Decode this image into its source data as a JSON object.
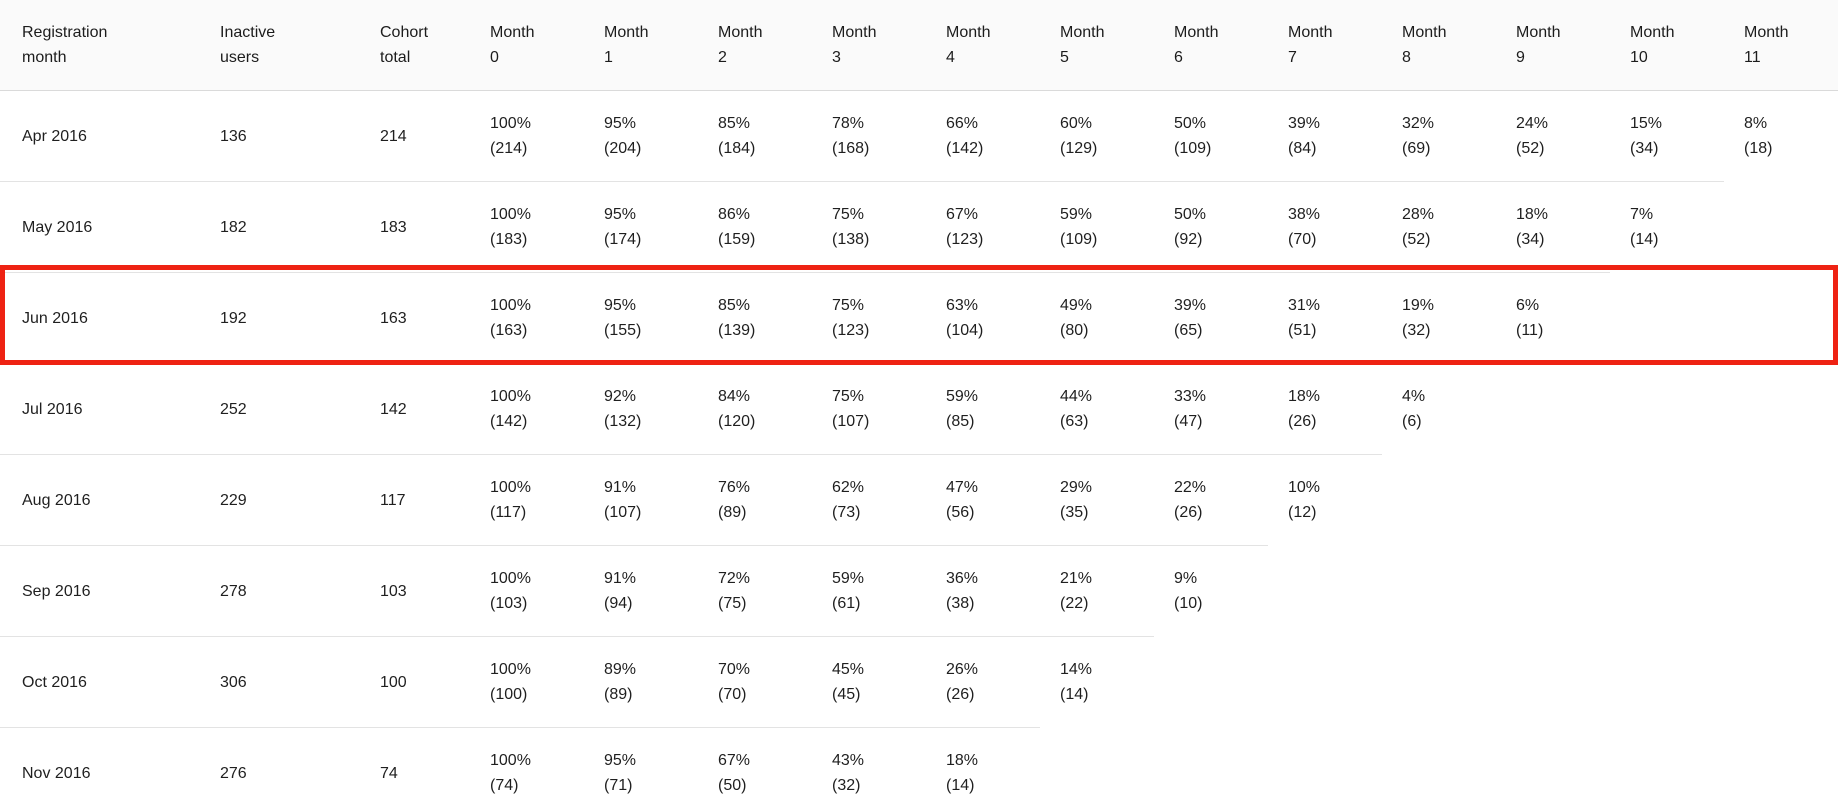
{
  "chart_data": {
    "type": "table",
    "columns": [
      "Registration month",
      "Inactive users",
      "Cohort total",
      "Month 0",
      "Month 1",
      "Month 2",
      "Month 3",
      "Month 4",
      "Month 5",
      "Month 6",
      "Month 7",
      "Month 8",
      "Month 9",
      "Month 10",
      "Month 11"
    ],
    "rows": [
      {
        "registration_month": "Apr 2016",
        "inactive_users": "136",
        "cohort_total": "214",
        "months": [
          [
            "100%",
            "(214)"
          ],
          [
            "95%",
            "(204)"
          ],
          [
            "85%",
            "(184)"
          ],
          [
            "78%",
            "(168)"
          ],
          [
            "66%",
            "(142)"
          ],
          [
            "60%",
            "(129)"
          ],
          [
            "50%",
            "(109)"
          ],
          [
            "39%",
            "(84)"
          ],
          [
            "32%",
            "(69)"
          ],
          [
            "24%",
            "(52)"
          ],
          [
            "15%",
            "(34)"
          ],
          [
            "8%",
            "(18)"
          ]
        ]
      },
      {
        "registration_month": "May 2016",
        "inactive_users": "182",
        "cohort_total": "183",
        "months": [
          [
            "100%",
            "(183)"
          ],
          [
            "95%",
            "(174)"
          ],
          [
            "86%",
            "(159)"
          ],
          [
            "75%",
            "(138)"
          ],
          [
            "67%",
            "(123)"
          ],
          [
            "59%",
            "(109)"
          ],
          [
            "50%",
            "(92)"
          ],
          [
            "38%",
            "(70)"
          ],
          [
            "28%",
            "(52)"
          ],
          [
            "18%",
            "(34)"
          ],
          [
            "7%",
            "(14)"
          ],
          null
        ]
      },
      {
        "registration_month": "Jun 2016",
        "inactive_users": "192",
        "cohort_total": "163",
        "months": [
          [
            "100%",
            "(163)"
          ],
          [
            "95%",
            "(155)"
          ],
          [
            "85%",
            "(139)"
          ],
          [
            "75%",
            "(123)"
          ],
          [
            "63%",
            "(104)"
          ],
          [
            "49%",
            "(80)"
          ],
          [
            "39%",
            "(65)"
          ],
          [
            "31%",
            "(51)"
          ],
          [
            "19%",
            "(32)"
          ],
          [
            "6%",
            "(11)"
          ],
          null,
          null
        ]
      },
      {
        "registration_month": "Jul 2016",
        "inactive_users": "252",
        "cohort_total": "142",
        "months": [
          [
            "100%",
            "(142)"
          ],
          [
            "92%",
            "(132)"
          ],
          [
            "84%",
            "(120)"
          ],
          [
            "75%",
            "(107)"
          ],
          [
            "59%",
            "(85)"
          ],
          [
            "44%",
            "(63)"
          ],
          [
            "33%",
            "(47)"
          ],
          [
            "18%",
            "(26)"
          ],
          [
            "4%",
            "(6)"
          ],
          null,
          null,
          null
        ]
      },
      {
        "registration_month": "Aug 2016",
        "inactive_users": "229",
        "cohort_total": "117",
        "months": [
          [
            "100%",
            "(117)"
          ],
          [
            "91%",
            "(107)"
          ],
          [
            "76%",
            "(89)"
          ],
          [
            "62%",
            "(73)"
          ],
          [
            "47%",
            "(56)"
          ],
          [
            "29%",
            "(35)"
          ],
          [
            "22%",
            "(26)"
          ],
          [
            "10%",
            "(12)"
          ],
          null,
          null,
          null,
          null
        ]
      },
      {
        "registration_month": "Sep 2016",
        "inactive_users": "278",
        "cohort_total": "103",
        "months": [
          [
            "100%",
            "(103)"
          ],
          [
            "91%",
            "(94)"
          ],
          [
            "72%",
            "(75)"
          ],
          [
            "59%",
            "(61)"
          ],
          [
            "36%",
            "(38)"
          ],
          [
            "21%",
            "(22)"
          ],
          [
            "9%",
            "(10)"
          ],
          null,
          null,
          null,
          null,
          null
        ]
      },
      {
        "registration_month": "Oct 2016",
        "inactive_users": "306",
        "cohort_total": "100",
        "months": [
          [
            "100%",
            "(100)"
          ],
          [
            "89%",
            "(89)"
          ],
          [
            "70%",
            "(70)"
          ],
          [
            "45%",
            "(45)"
          ],
          [
            "26%",
            "(26)"
          ],
          [
            "14%",
            "(14)"
          ],
          null,
          null,
          null,
          null,
          null,
          null
        ]
      },
      {
        "registration_month": "Nov 2016",
        "inactive_users": "276",
        "cohort_total": "74",
        "months": [
          [
            "100%",
            "(74)"
          ],
          [
            "95%",
            "(71)"
          ],
          [
            "67%",
            "(50)"
          ],
          [
            "43%",
            "(32)"
          ],
          [
            "18%",
            "(14)"
          ],
          null,
          null,
          null,
          null,
          null,
          null,
          null
        ]
      }
    ],
    "highlight": {
      "row": "Jun 2016",
      "color": "#ee2213"
    },
    "layout": {
      "header_background": "#fafafa",
      "row_border_color": "#e3e3e3",
      "text_color": "#1f1f1f"
    }
  }
}
